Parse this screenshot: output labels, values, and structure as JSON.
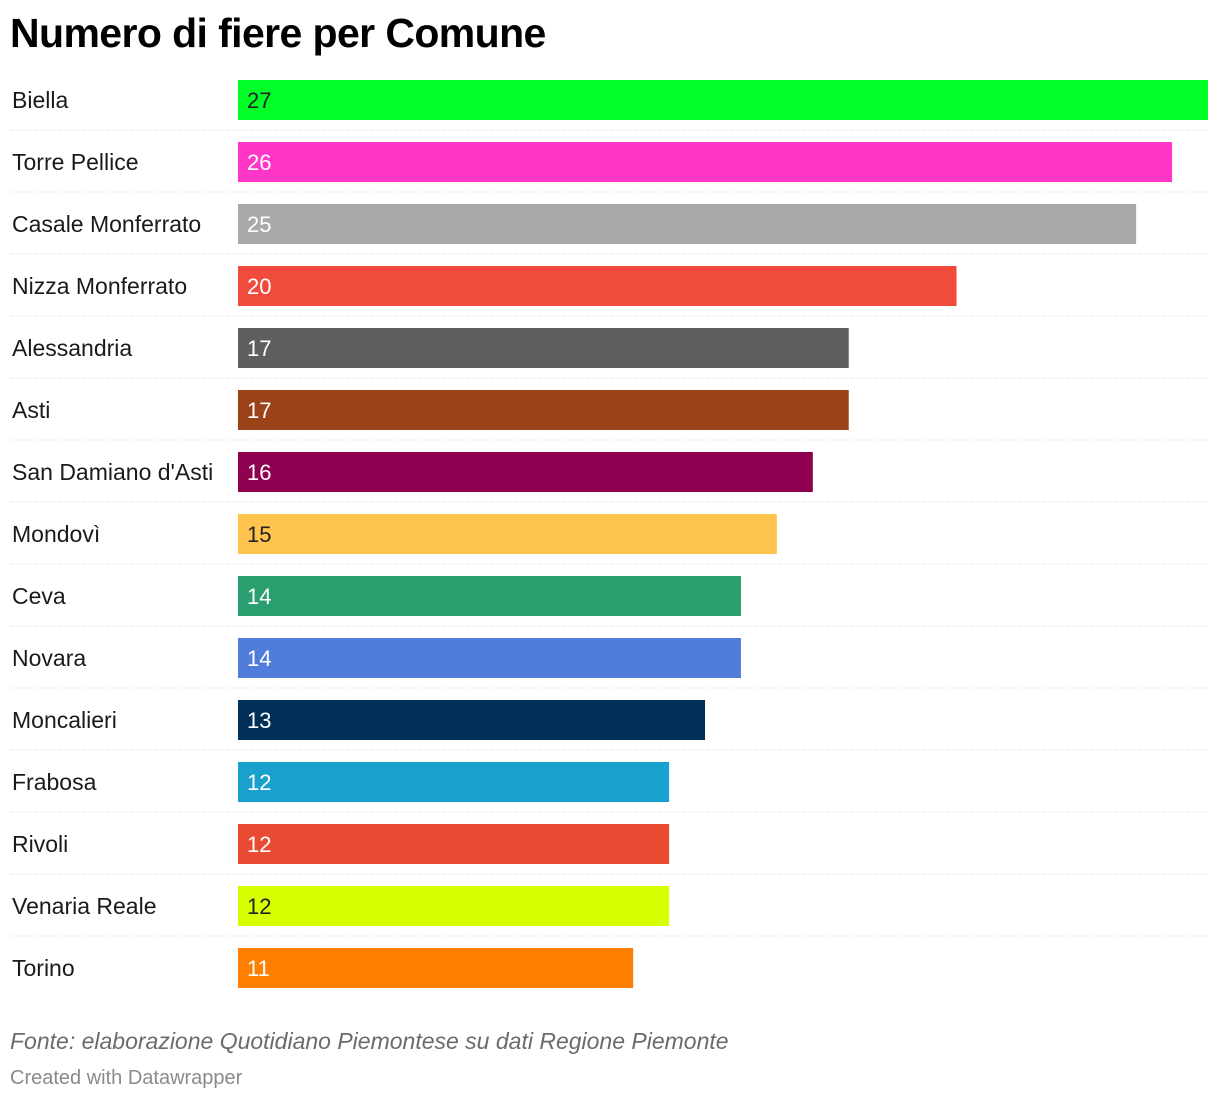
{
  "chart_data": {
    "type": "bar",
    "orientation": "horizontal",
    "title": "Numero di fiere per Comune",
    "categories": [
      "Biella",
      "Torre Pellice",
      "Casale Monferrato",
      "Nizza Monferrato",
      "Alessandria",
      "Asti",
      "San Damiano d'Asti",
      "Mondovì",
      "Ceva",
      "Novara",
      "Moncalieri",
      "Frabosa",
      "Rivoli",
      "Venaria Reale",
      "Torino"
    ],
    "values": [
      27,
      26,
      25,
      20,
      17,
      17,
      16,
      15,
      14,
      14,
      13,
      12,
      12,
      12,
      11
    ],
    "colors": [
      "#00ff26",
      "#ff36c8",
      "#a9a9a9",
      "#f04b3c",
      "#5e5e5e",
      "#9b4218",
      "#900050",
      "#ffc44d",
      "#2a9e6f",
      "#507ddb",
      "#003057",
      "#18a1cd",
      "#e84b32",
      "#d8ff00",
      "#ff7f00"
    ],
    "label_colors": [
      "#222222",
      "#ffffff",
      "#ffffff",
      "#ffffff",
      "#ffffff",
      "#ffffff",
      "#ffffff",
      "#222222",
      "#ffffff",
      "#ffffff",
      "#ffffff",
      "#ffffff",
      "#ffffff",
      "#222222",
      "#ffffff"
    ],
    "xlim": [
      0,
      27
    ],
    "grid": false,
    "legend": "none"
  },
  "source": "Fonte: elaborazione Quotidiano Piemontese su dati Regione Piemonte",
  "credit": "Created with Datawrapper"
}
